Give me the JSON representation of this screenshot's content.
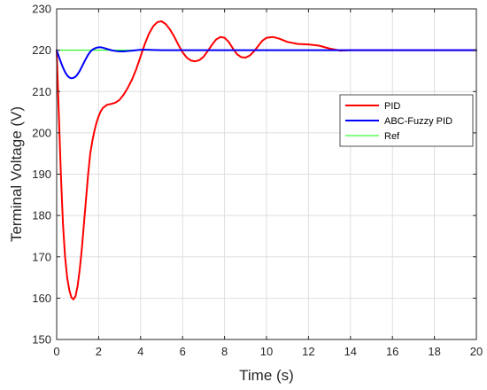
{
  "chart_data": {
    "type": "line",
    "xlabel": "Time (s)",
    "ylabel": "Terminal Voltage (V)",
    "xlim": [
      0,
      20
    ],
    "ylim": [
      150,
      230
    ],
    "xticks": [
      0,
      2,
      4,
      6,
      8,
      10,
      12,
      14,
      16,
      18,
      20
    ],
    "yticks": [
      150,
      160,
      170,
      180,
      190,
      200,
      210,
      220,
      230
    ],
    "grid": true,
    "legend_position": "right",
    "series": [
      {
        "name": "PID",
        "color": "#ff0000",
        "x": [
          0,
          0.1,
          0.2,
          0.3,
          0.4,
          0.5,
          0.6,
          0.7,
          0.8,
          0.9,
          1.0,
          1.1,
          1.2,
          1.3,
          1.4,
          1.5,
          1.6,
          1.7,
          1.8,
          1.9,
          2.0,
          2.1,
          2.2,
          2.4,
          2.6,
          2.8,
          3.0,
          3.2,
          3.4,
          3.6,
          3.8,
          4.0,
          4.2,
          4.4,
          4.6,
          4.8,
          5.0,
          5.2,
          5.4,
          5.6,
          5.8,
          6.0,
          6.2,
          6.4,
          6.6,
          6.8,
          7.0,
          7.2,
          7.4,
          7.6,
          7.8,
          8.0,
          8.2,
          8.4,
          8.6,
          8.8,
          9.0,
          9.2,
          9.4,
          9.6,
          9.8,
          10.0,
          10.3,
          10.6,
          11.0,
          11.5,
          12.0,
          12.5,
          13.0,
          13.5,
          14.0,
          15.0,
          16.0,
          18.0,
          20.0
        ],
        "y": [
          220,
          205,
          190,
          178,
          170,
          165,
          162,
          160.2,
          159.7,
          160.5,
          163,
          167,
          172,
          178,
          184,
          190,
          195,
          198,
          200.5,
          202.5,
          204,
          205.2,
          206,
          206.8,
          207,
          207.3,
          208,
          209.3,
          211,
          213,
          215.5,
          218.5,
          221.5,
          224,
          225.8,
          226.8,
          227,
          226.3,
          225,
          223.3,
          221.3,
          219.5,
          218.2,
          217.5,
          217.3,
          217.6,
          218.4,
          219.8,
          221.3,
          222.6,
          223.2,
          223,
          222,
          220.4,
          219,
          218.3,
          218.2,
          218.7,
          219.7,
          221,
          222.3,
          223,
          223.2,
          222.8,
          222,
          221.5,
          221.4,
          221.1,
          220.4,
          219.9,
          220,
          220,
          220,
          220,
          220
        ]
      },
      {
        "name": "ABC-Fuzzy PID",
        "color": "#0000ff",
        "x": [
          0,
          0.1,
          0.2,
          0.3,
          0.4,
          0.5,
          0.6,
          0.7,
          0.8,
          0.9,
          1.0,
          1.1,
          1.2,
          1.3,
          1.4,
          1.5,
          1.6,
          1.7,
          1.8,
          1.9,
          2.0,
          2.1,
          2.2,
          2.4,
          2.6,
          2.8,
          3.0,
          3.2,
          3.4,
          3.6,
          3.8,
          4.0,
          4.3,
          4.6,
          5.0,
          6.0,
          8.0,
          10.0,
          12.0,
          14.0,
          16.0,
          18.0,
          20.0
        ],
        "y": [
          220,
          218.5,
          217.1,
          215.8,
          214.7,
          213.9,
          213.4,
          213.2,
          213.3,
          213.6,
          214.2,
          215,
          216,
          217,
          218,
          218.9,
          219.6,
          220.1,
          220.4,
          220.6,
          220.7,
          220.7,
          220.6,
          220.3,
          220,
          219.8,
          219.7,
          219.7,
          219.8,
          219.9,
          220,
          220.1,
          220.1,
          220.05,
          220,
          220,
          220,
          220,
          220,
          220,
          220,
          220,
          220
        ]
      },
      {
        "name": "Ref",
        "color": "#00ff00",
        "x": [
          0,
          20
        ],
        "y": [
          220,
          220
        ]
      }
    ]
  }
}
